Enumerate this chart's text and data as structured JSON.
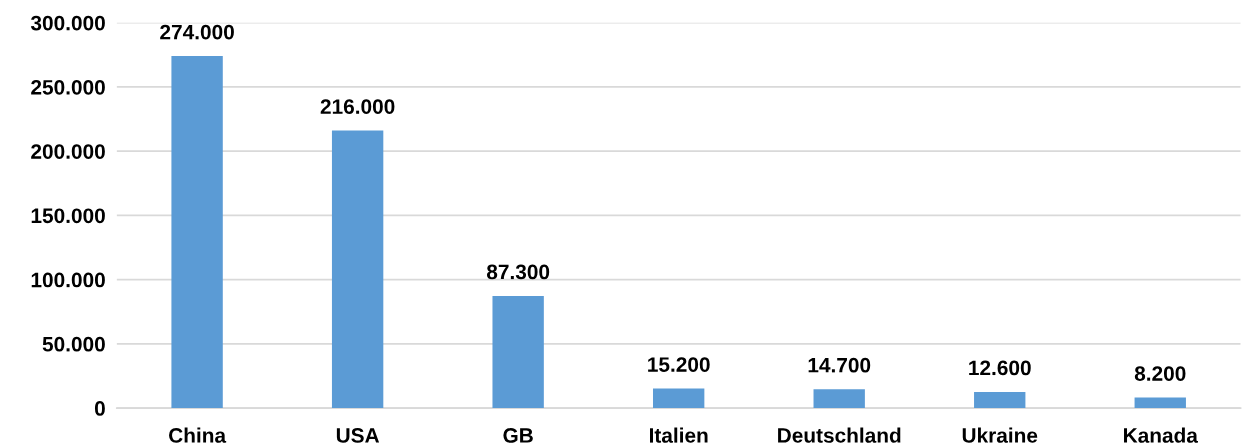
{
  "chart_data": {
    "type": "bar",
    "categories": [
      "China",
      "USA",
      "GB",
      "Italien",
      "Deutschland",
      "Ukraine",
      "Kanada"
    ],
    "values": [
      274000,
      216000,
      87300,
      15200,
      14700,
      12600,
      8200
    ],
    "value_labels": [
      "274.000",
      "216.000",
      "87.300",
      "15.200",
      "14.700",
      "12.600",
      "8.200"
    ],
    "color": "#5b9bd5",
    "ylim": [
      0,
      300000
    ],
    "yticks": [
      0,
      {
        "value": 50000,
        "label": "50.000"
      },
      {
        "value": 100000,
        "label": "100.000"
      },
      {
        "value": 150000,
        "label": "150.000"
      },
      {
        "value": 200000,
        "label": "200.000"
      },
      {
        "value": 250000,
        "label": "250.000"
      },
      {
        "value": 300000,
        "label": "300.000"
      }
    ],
    "grid": "y"
  }
}
